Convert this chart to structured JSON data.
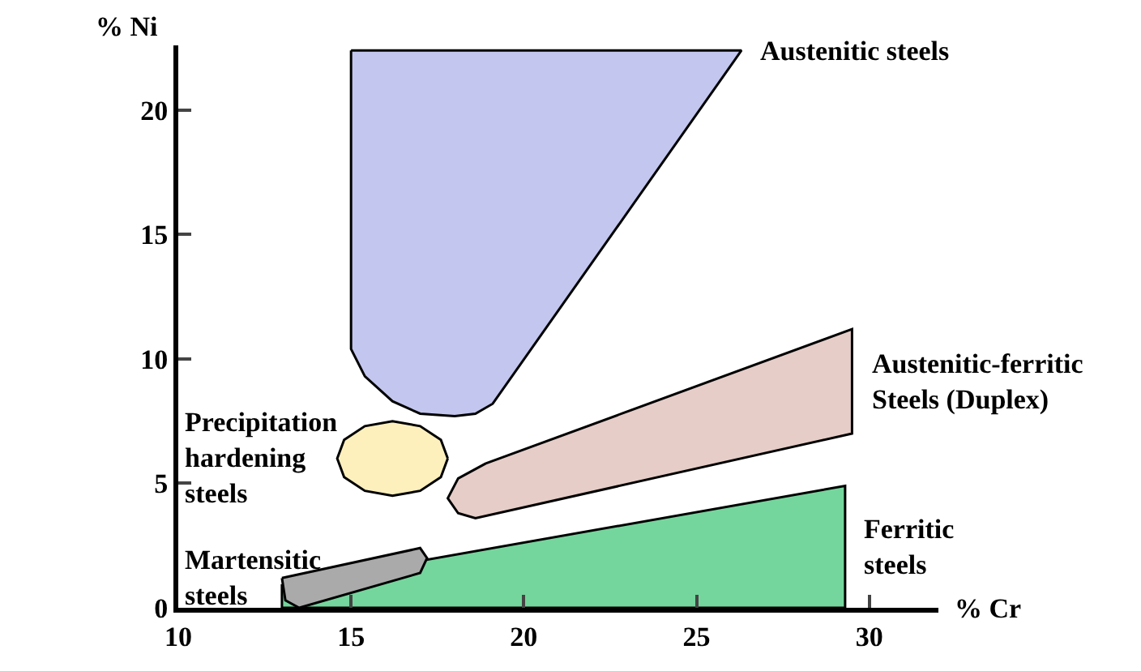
{
  "chart_data": {
    "type": "area",
    "xlabel": "% Cr",
    "ylabel": "% Ni",
    "xlim": [
      10,
      32
    ],
    "ylim": [
      0,
      22.6
    ],
    "xticks": [
      10,
      15,
      20,
      25,
      30
    ],
    "yticks": [
      0,
      5,
      10,
      15,
      20
    ],
    "legend": false,
    "line_style": "solid",
    "marker": "none",
    "series": [
      {
        "name": "Austenitic steels",
        "color": "#c3c6ee",
        "x": [
          15,
          15,
          15.4,
          16.2,
          17,
          18,
          18.6,
          19.1,
          26.1,
          26.3
        ],
        "values": [
          22.4,
          10.4,
          9.3,
          8.3,
          7.8,
          7.7,
          7.8,
          8.2,
          22.0,
          22.4
        ]
      },
      {
        "name": "Austenitic-ferritic\nSteels (Duplex)",
        "color": "#e6cdc8",
        "x": [
          18.9,
          29.5,
          29.5,
          18.6,
          18.1,
          17.8,
          18.1
        ],
        "values": [
          5.8,
          11.2,
          7.0,
          3.6,
          3.8,
          4.4,
          5.2
        ]
      },
      {
        "name": "Ferritic\nsteels",
        "color": "#74d69c",
        "x": [
          13.0,
          13.0,
          29.3,
          29.3
        ],
        "values": [
          0,
          0.9,
          4.9,
          0
        ]
      },
      {
        "name": "Precipitation\nhardening\nsteels",
        "color": "#fdf0bd",
        "x": [
          17.8,
          17.6,
          17.0,
          16.2,
          15.4,
          14.8,
          14.6,
          14.8,
          15.4,
          16.2,
          17.0,
          17.6
        ],
        "values": [
          6.0,
          6.75,
          7.3,
          7.5,
          7.3,
          6.75,
          6.0,
          5.25,
          4.7,
          4.5,
          4.7,
          5.25
        ]
      },
      {
        "name": "Martensitic\nsteels",
        "color": "#aaaaaa",
        "x": [
          13.0,
          17.0,
          17.2,
          17.0,
          13.5,
          13.1
        ],
        "values": [
          1.2,
          2.4,
          2.0,
          1.4,
          0,
          0.3
        ]
      }
    ]
  }
}
